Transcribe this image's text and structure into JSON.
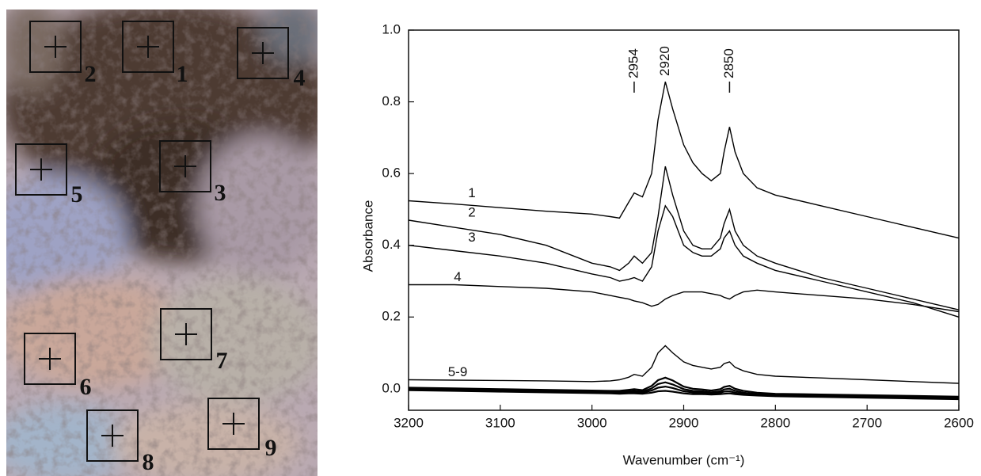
{
  "micrograph": {
    "spots": [
      "1",
      "2",
      "3",
      "4",
      "5",
      "6",
      "7",
      "8",
      "9"
    ]
  },
  "chart_data": {
    "type": "line",
    "x_label": "Wavenumber (cm⁻¹)",
    "y_label": "Absorbance",
    "xlim": [
      3200,
      2600
    ],
    "xticks": [
      3200,
      3100,
      3000,
      2900,
      2800,
      2700,
      2600
    ],
    "ylim": [
      -0.06,
      1.0
    ],
    "yticks": [
      {
        "value": 0,
        "label": "0.0"
      },
      0.2,
      0.4,
      0.6,
      0.8,
      {
        "value": 1,
        "label": "1.0"
      }
    ],
    "peak_labels": [
      2954,
      2920,
      2850
    ],
    "x": [
      3200,
      3150,
      3100,
      3050,
      3000,
      2980,
      2970,
      2960,
      2954,
      2945,
      2935,
      2928,
      2920,
      2912,
      2900,
      2890,
      2880,
      2870,
      2860,
      2856,
      2850,
      2844,
      2835,
      2820,
      2800,
      2750,
      2700,
      2650,
      2600
    ],
    "series": [
      {
        "name": "1",
        "color": "#000000",
        "values": [
          0.524,
          0.515,
          0.505,
          0.495,
          0.487,
          0.48,
          0.476,
          0.52,
          0.546,
          0.535,
          0.6,
          0.75,
          0.856,
          0.78,
          0.68,
          0.63,
          0.6,
          0.58,
          0.6,
          0.66,
          0.73,
          0.66,
          0.6,
          0.56,
          0.54,
          0.51,
          0.48,
          0.45,
          0.42
        ]
      },
      {
        "name": "2",
        "color": "#000000",
        "values": [
          0.47,
          0.45,
          0.43,
          0.4,
          0.35,
          0.34,
          0.33,
          0.35,
          0.37,
          0.35,
          0.38,
          0.48,
          0.62,
          0.54,
          0.44,
          0.4,
          0.39,
          0.39,
          0.42,
          0.46,
          0.5,
          0.44,
          0.4,
          0.37,
          0.35,
          0.31,
          0.28,
          0.25,
          0.22
        ]
      },
      {
        "name": "3",
        "color": "#000000",
        "values": [
          0.4,
          0.385,
          0.37,
          0.35,
          0.32,
          0.31,
          0.3,
          0.305,
          0.31,
          0.3,
          0.34,
          0.44,
          0.51,
          0.48,
          0.4,
          0.38,
          0.37,
          0.37,
          0.39,
          0.42,
          0.44,
          0.4,
          0.37,
          0.35,
          0.33,
          0.3,
          0.27,
          0.24,
          0.2
        ]
      },
      {
        "name": "4",
        "color": "#000000",
        "values": [
          0.29,
          0.29,
          0.285,
          0.28,
          0.27,
          0.26,
          0.255,
          0.25,
          0.245,
          0.24,
          0.23,
          0.235,
          0.25,
          0.26,
          0.27,
          0.27,
          0.27,
          0.265,
          0.26,
          0.255,
          0.25,
          0.26,
          0.27,
          0.275,
          0.27,
          0.26,
          0.25,
          0.235,
          0.215
        ]
      },
      {
        "name": "5-9",
        "color": "#000000",
        "values": [
          0.025,
          0.024,
          0.023,
          0.022,
          0.02,
          0.022,
          0.025,
          0.032,
          0.04,
          0.035,
          0.06,
          0.1,
          0.12,
          0.1,
          0.075,
          0.065,
          0.06,
          0.055,
          0.06,
          0.07,
          0.075,
          0.06,
          0.05,
          0.04,
          0.035,
          0.03,
          0.025,
          0.02,
          0.015
        ]
      },
      {
        "color": "#000000",
        "values": [
          0.003,
          0.001,
          -0.001,
          -0.003,
          -0.005,
          -0.006,
          -0.006,
          -0.003,
          -0.001,
          -0.004,
          0.008,
          0.024,
          0.031,
          0.023,
          0.006,
          0,
          -0.002,
          -0.005,
          -0.001,
          0.005,
          0.008,
          0,
          -0.006,
          -0.011,
          -0.014,
          -0.016,
          -0.018,
          -0.02,
          -0.022
        ]
      },
      {
        "color": "#000000",
        "values": [
          0,
          -0.002,
          -0.004,
          -0.006,
          -0.008,
          -0.009,
          -0.009,
          -0.007,
          -0.006,
          -0.008,
          0.001,
          0.013,
          0.018,
          0.012,
          -0.001,
          -0.006,
          -0.007,
          -0.01,
          -0.007,
          -0.002,
          0,
          -0.006,
          -0.011,
          -0.015,
          -0.017,
          -0.019,
          -0.021,
          -0.023,
          -0.025
        ]
      },
      {
        "color": "#000000",
        "values": [
          -0.002,
          -0.004,
          -0.006,
          -0.008,
          -0.01,
          -0.011,
          -0.012,
          -0.01,
          -0.009,
          -0.011,
          -0.005,
          0.003,
          0.006,
          0.002,
          -0.007,
          -0.01,
          -0.011,
          -0.013,
          -0.011,
          -0.008,
          -0.007,
          -0.011,
          -0.014,
          -0.017,
          -0.019,
          -0.021,
          -0.023,
          -0.025,
          -0.027
        ]
      },
      {
        "color": "#000000",
        "values": [
          -0.004,
          -0.006,
          -0.008,
          -0.01,
          -0.012,
          -0.013,
          -0.014,
          -0.013,
          -0.013,
          -0.014,
          -0.011,
          -0.007,
          -0.006,
          -0.008,
          -0.013,
          -0.015,
          -0.015,
          -0.016,
          -0.015,
          -0.014,
          -0.013,
          -0.015,
          -0.017,
          -0.019,
          -0.021,
          -0.023,
          -0.025,
          -0.027,
          -0.029
        ]
      }
    ]
  }
}
